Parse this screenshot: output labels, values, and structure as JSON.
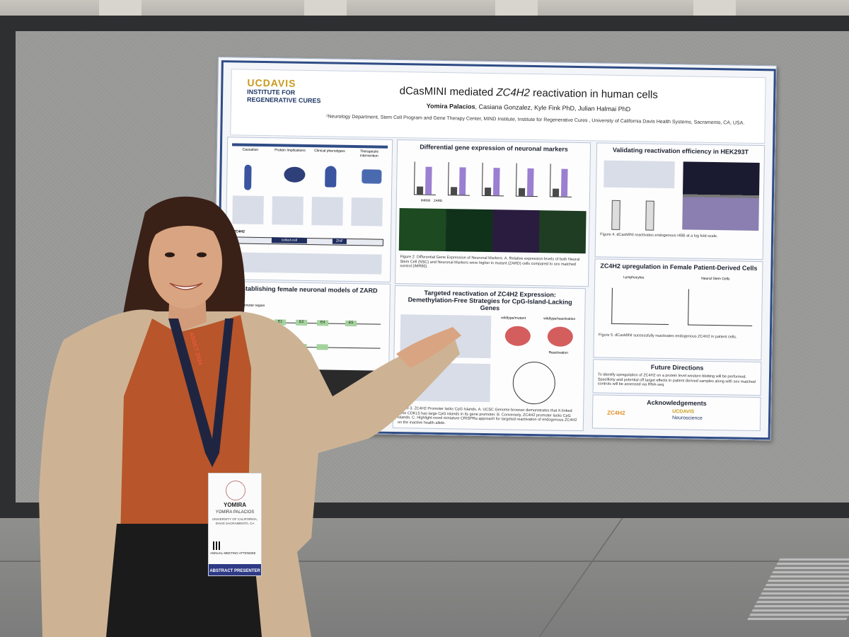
{
  "poster": {
    "logo": {
      "brand": "UCDAVIS",
      "institute": "INSTITUTE FOR REGENERATIVE CURES"
    },
    "title_prefix": "dCasMINI mediated ",
    "title_gene": "ZC4H2",
    "title_suffix": " reactivation in human cells",
    "presenter_author": "Yomira Palacios",
    "coauthors": ", Casiana Gonzalez, Kyle Fink PhD, Julian Halmai PhD",
    "affiliation": "¹Neurology Department, Stem Cell Program and Gene Therapy Center, MIND Institute, Institute for Regenerative Cures , University of California Davis Health Systems, Sacramento, CA, USA.",
    "panels": {
      "causation": {
        "steps": [
          "Causation",
          "Protein Implications",
          "Clinical phenotypes",
          "Therapeutic intervention"
        ],
        "gene_label": "ZC4H2",
        "domain_label": "coiled-coil",
        "znf_label": "ZNF"
      },
      "neuronal": {
        "title": "Establishing female neuronal models of ZARD",
        "promoter": "Promoter region",
        "exons": [
          "E1",
          "E2",
          "E4",
          "E5"
        ]
      },
      "differential": {
        "title": "Differential gene expression of neuronal markers",
        "groups": [
          "IMR90",
          "ZARD"
        ],
        "caption": "Figure 2: Differential Gene Expression of Neuronal Markers. A. Relative expression levels of both Neural Stem Cell (NSC) and Neuronal Markers were higher in mutant (ZARD) cells compared to sex matched control (IMR90)."
      },
      "targeted": {
        "title": "Targeted reactivation of ZC4H2 Expression: Demethylation-Free Strategies for CpG-Island-Lacking Genes",
        "label_wt_mut": "wildtype/mutant",
        "label_wt_react": "wildtype/reactivation",
        "label_reactivation": "Reactivation",
        "caption": "Figure 3. ZC4H2 Promoter lacks CpG Islands. A. UCSC Genome browser demonstrates that X-linked gene CDKL5 has large CpG islands in its gene promoter. B. Conversely, ZC4H2 promoter lacks CpG islands. C. Highlight novel miniature CRISPRa approach for targeted reactivation of endogenous ZC4H2 on the inactive health allele."
      },
      "validating": {
        "title": "Validating reactivation efficiency in HEK293T",
        "caption": "Figure 4. dCasMINI reactivates endogenous HBB at a log fold scale."
      },
      "upregulation": {
        "title": "ZC4H2 upregulation in Female Patient-Derived Cells",
        "sub_left": "Lymphocytes",
        "sub_right": "Neural Stem Cells",
        "caption": "Figure 5. dCasMINI successfully reactivates endogenous ZC4H2 in patient cells."
      },
      "future": {
        "title": "Future Directions",
        "text": "To identify upregulation of ZC4H2 on a protein level western blotting will be performed. Specificity and potential off target effects in patient derived samples along with sex matched controls will be assessed via RNA-seq."
      },
      "ack": {
        "title": "Acknowledgements",
        "org1": "ZC4H2",
        "org2_brand": "UCDAVIS",
        "org2_name": "Neuroscience"
      }
    }
  },
  "differential_chart": {
    "type": "bar",
    "categories": [
      "IMR90",
      "ZARD"
    ],
    "values": [
      1,
      3.4
    ]
  },
  "badge": {
    "name": "YOMIRA",
    "full_name": "YOMIRA PALACIOS",
    "institution": "UNIVERSITY OF CALIFORNIA, DAVIS SACRAMENTO, CA",
    "role": "ANNUAL MEETING ATTENDEE",
    "ribbon": "ABSTRACT PRESENTER"
  },
  "lanyard": {
    "text": "ASGCT 2024"
  },
  "colors": {
    "poster_border": "#2f4c86",
    "accent_gold": "#c99a1d",
    "bar_purple": "#9b7fd1",
    "shirt": "#b8552a",
    "cardigan": "#cdb394"
  }
}
